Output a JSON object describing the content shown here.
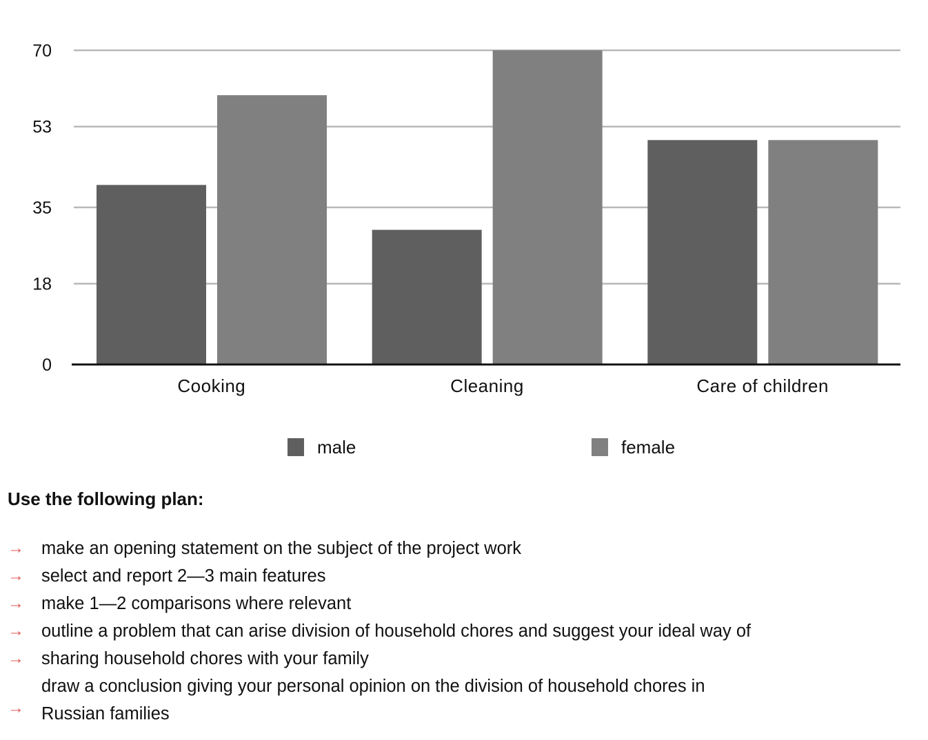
{
  "chart_data": {
    "type": "bar",
    "categories": [
      "Cooking",
      "Cleaning",
      "Care of children"
    ],
    "series": [
      {
        "name": "male",
        "values": [
          40,
          30,
          50
        ],
        "color": "#5f5f5f"
      },
      {
        "name": "female",
        "values": [
          60,
          70,
          50
        ],
        "color": "#808080"
      }
    ],
    "yticks": [
      "0",
      "18",
      "35",
      "53",
      "70"
    ],
    "ylim": [
      0,
      70
    ],
    "grid": true,
    "legend_placement": "bottom-center"
  },
  "plan": {
    "title": "Use the following plan:",
    "lines": [
      "make an opening statement on the subject of the project work",
      "select and report 2—3 main features",
      "make 1—2 comparisons where relevant",
      "outline a problem that can arise division of household chores and suggest your ideal way of",
      "sharing household chores with your family",
      "draw a conclusion giving your personal opinion on the division of household chores in",
      "Russian families"
    ],
    "arrow_icon": "→",
    "arrow_color": "#e05555"
  }
}
